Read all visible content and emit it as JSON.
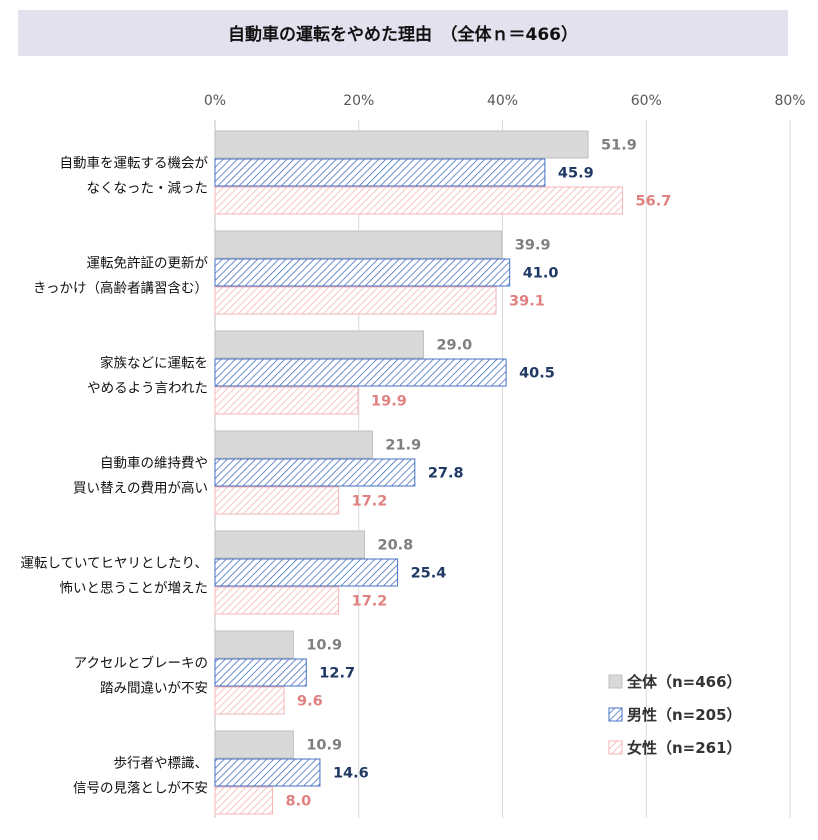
{
  "chart_data": {
    "type": "bar",
    "orientation": "horizontal",
    "title": "自動車の運転をやめた理由　（全体ｎ＝466）",
    "x_ticks": [
      "0%",
      "20%",
      "40%",
      "60%",
      "80%"
    ],
    "xlim": [
      0,
      80
    ],
    "grid": true,
    "legend_position": "bottom-right",
    "categories": [
      [
        "自動車を運転する機会が",
        "なくなった・減った"
      ],
      [
        "運転免許証の更新が",
        "きっかけ（高齢者講習含む）"
      ],
      [
        "家族などに運転を",
        "やめるよう言われた"
      ],
      [
        "自動車の維持費や",
        "買い替えの費用が高い"
      ],
      [
        "運転していてヒヤリとしたり、",
        "怖いと思うことが増えた"
      ],
      [
        "アクセルとブレーキの",
        "踏み間違いが不安"
      ],
      [
        "歩行者や標識、",
        "信号の見落としが不安"
      ]
    ],
    "series": [
      {
        "name": "全体（n=466）",
        "values": [
          51.9,
          39.9,
          29.0,
          21.9,
          20.8,
          10.9,
          10.9
        ],
        "fill": "#d9d9d9",
        "stroke": "#bfbfbf",
        "label_color": "#7f7f7f",
        "pattern": "solid"
      },
      {
        "name": "男性（n=205）",
        "values": [
          45.9,
          41.0,
          40.5,
          27.8,
          25.4,
          12.7,
          14.6
        ],
        "fill": "#4472c4",
        "stroke": "#4472c4",
        "label_color": "#1f3864",
        "pattern": "hatch"
      },
      {
        "name": "女性（n=261）",
        "values": [
          56.7,
          39.1,
          19.9,
          17.2,
          17.2,
          9.6,
          8.0
        ],
        "fill": "#f4b6b6",
        "stroke": "#f4b6b6",
        "label_color": "#e08080",
        "pattern": "hatch"
      }
    ]
  }
}
